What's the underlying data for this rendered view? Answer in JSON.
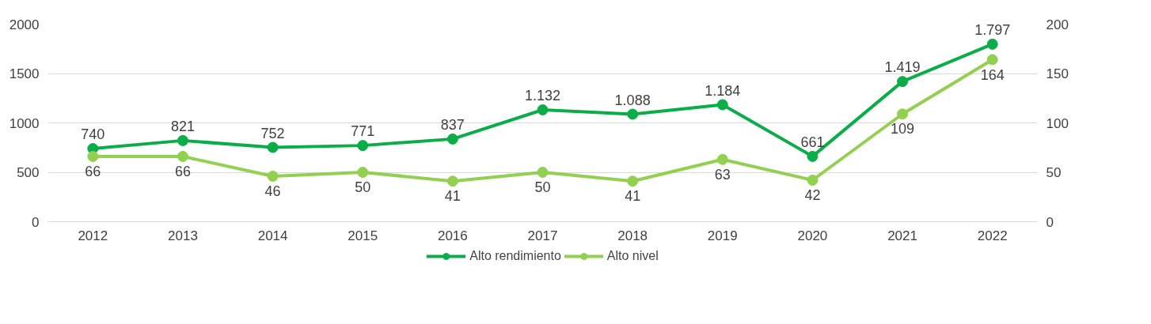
{
  "chart_data": {
    "type": "line",
    "categories": [
      "2012",
      "2013",
      "2014",
      "2015",
      "2016",
      "2017",
      "2018",
      "2019",
      "2020",
      "2021",
      "2022"
    ],
    "series": [
      {
        "name": "Alto rendimiento",
        "color": "#0aad48",
        "values": [
          740,
          821,
          752,
          771,
          837,
          1132,
          1088,
          1184,
          661,
          1419,
          1797
        ],
        "value_labels": [
          "740",
          "821",
          "752",
          "771",
          "837",
          "1.132",
          "1.088",
          "1.184",
          "661",
          "1.419",
          "1.797"
        ]
      },
      {
        "name": "Alto nivel",
        "color": "#92d050",
        "axis": "y2",
        "values": [
          66,
          66,
          46,
          50,
          41,
          50,
          41,
          63,
          42,
          109,
          164
        ]
      }
    ],
    "ylim": [
      0,
      2000
    ],
    "yticks": [
      0,
      500,
      1000,
      1500,
      2000
    ],
    "y2lim": [
      0,
      200
    ],
    "y2ticks": [
      0,
      50,
      100,
      150,
      200
    ],
    "data_labels": true,
    "grid": "y",
    "legend": "bottom",
    "marker": "circle",
    "line_style": "solid"
  }
}
